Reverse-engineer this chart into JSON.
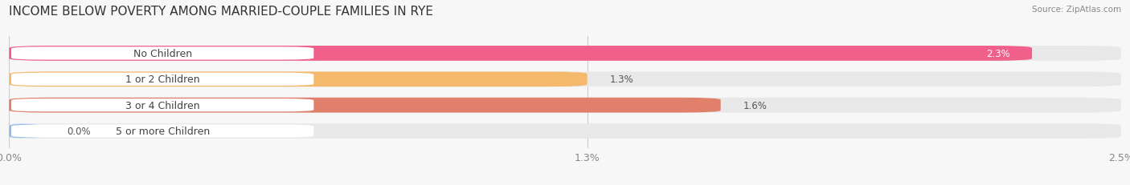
{
  "title": "INCOME BELOW POVERTY AMONG MARRIED-COUPLE FAMILIES IN RYE",
  "source": "Source: ZipAtlas.com",
  "categories": [
    "No Children",
    "1 or 2 Children",
    "3 or 4 Children",
    "5 or more Children"
  ],
  "values": [
    2.3,
    1.3,
    1.6,
    0.0
  ],
  "bar_colors": [
    "#f0608a",
    "#f5b96e",
    "#e0806a",
    "#90b8e8"
  ],
  "xlim": [
    0,
    2.5
  ],
  "xticks": [
    0.0,
    1.3,
    2.5
  ],
  "xtick_labels": [
    "0.0%",
    "1.3%",
    "2.5%"
  ],
  "bar_height": 0.58,
  "background_color": "#f7f7f7",
  "title_fontsize": 11,
  "label_fontsize": 9,
  "value_fontsize": 8.5,
  "value_inside_threshold": 2.0
}
